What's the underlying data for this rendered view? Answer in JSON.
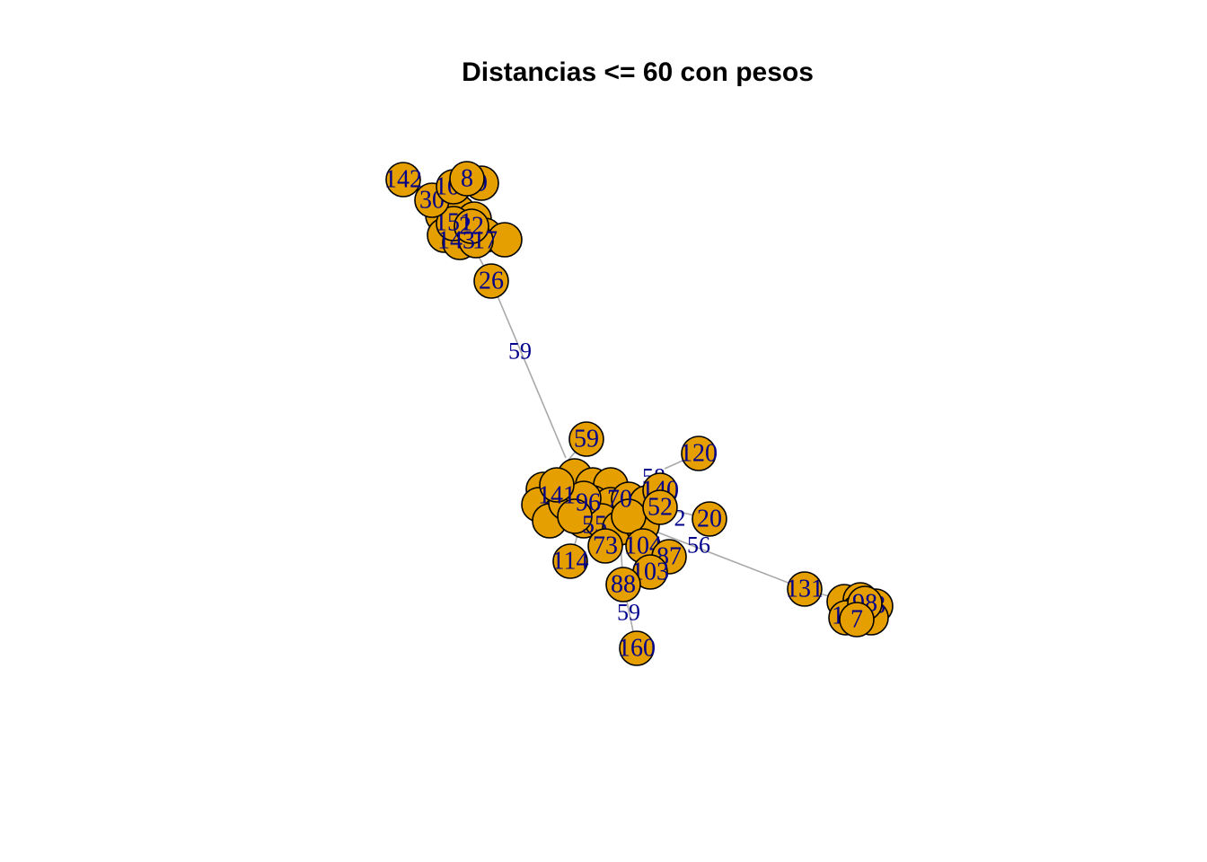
{
  "title": "Distancias <= 60 con pesos",
  "colors": {
    "vertex_fill": "#E69F00",
    "vertex_border": "#000000",
    "label": "#00008B",
    "edge": "#A9A9A9"
  },
  "graph": {
    "vertex_labels": [
      "142",
      "30",
      "103",
      "9",
      "8",
      "26",
      "59",
      "120",
      "140",
      "52",
      "20",
      "104",
      "87",
      "73",
      "114",
      "103",
      "88",
      "160",
      "131",
      "98",
      "7"
    ],
    "edge_labels": [
      "59",
      "56",
      "59",
      "58",
      "2"
    ]
  }
}
